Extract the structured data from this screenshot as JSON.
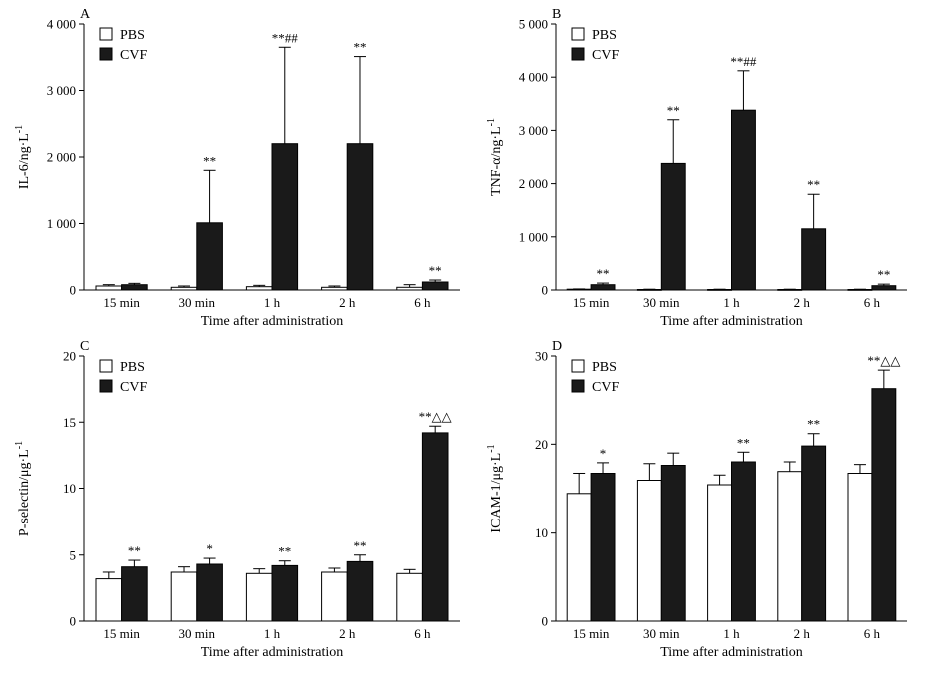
{
  "figure": {
    "legend": {
      "pbs": "PBS",
      "cvf": "CVF"
    },
    "colors": {
      "pbs": "#ffffff",
      "cvf": "#1a1a1a",
      "axis": "#000000"
    }
  },
  "chart_data": [
    {
      "type": "bar",
      "panel": "A",
      "ylabel": "IL-6/ng·L",
      "ylabel_sup": "-1",
      "xlabel": "Time after administration",
      "ylim": [
        0,
        4000
      ],
      "yticks": [
        0,
        1000,
        2000,
        3000,
        4000
      ],
      "ytick_labels": [
        "0",
        "1 000",
        "2 000",
        "3 000",
        "4 000"
      ],
      "categories": [
        "15 min",
        "30 min",
        "1 h",
        "2 h",
        "6 h"
      ],
      "legend_labels": [
        "PBS",
        "CVF"
      ],
      "series": [
        {
          "name": "PBS",
          "values": [
            60,
            40,
            50,
            40,
            40
          ],
          "errors": [
            20,
            20,
            20,
            20,
            40
          ]
        },
        {
          "name": "CVF",
          "values": [
            80,
            1010,
            2200,
            2200,
            120
          ],
          "errors": [
            20,
            790,
            1450,
            1310,
            30
          ]
        }
      ],
      "annotations": [
        "",
        "**",
        "**##",
        "**",
        "**"
      ]
    },
    {
      "type": "bar",
      "panel": "B",
      "ylabel": "TNF-α/ng·L",
      "ylabel_sup": "-1",
      "xlabel": "Time after administration",
      "ylim": [
        0,
        5000
      ],
      "yticks": [
        0,
        1000,
        2000,
        3000,
        4000,
        5000
      ],
      "ytick_labels": [
        "0",
        "1 000",
        "2 000",
        "3 000",
        "4 000",
        "5 000"
      ],
      "categories": [
        "15 min",
        "30 min",
        "1 h",
        "2 h",
        "6 h"
      ],
      "legend_labels": [
        "PBS",
        "CVF"
      ],
      "series": [
        {
          "name": "PBS",
          "values": [
            15,
            10,
            10,
            10,
            10
          ],
          "errors": [
            5,
            5,
            5,
            5,
            5
          ]
        },
        {
          "name": "CVF",
          "values": [
            100,
            2380,
            3380,
            1150,
            80
          ],
          "errors": [
            30,
            820,
            740,
            650,
            30
          ]
        }
      ],
      "annotations": [
        "**",
        "**",
        "**##",
        "**",
        "**"
      ]
    },
    {
      "type": "bar",
      "panel": "C",
      "ylabel": "P-selectin/μg·L",
      "ylabel_sup": "-1",
      "xlabel": "Time after administration",
      "ylim": [
        0,
        20
      ],
      "yticks": [
        0,
        5,
        10,
        15,
        20
      ],
      "ytick_labels": [
        "0",
        "5",
        "10",
        "15",
        "20"
      ],
      "categories": [
        "15 min",
        "30 min",
        "1 h",
        "2 h",
        "6 h"
      ],
      "legend_labels": [
        "PBS",
        "CVF"
      ],
      "series": [
        {
          "name": "PBS",
          "values": [
            3.2,
            3.7,
            3.6,
            3.7,
            3.6
          ],
          "errors": [
            0.5,
            0.4,
            0.35,
            0.3,
            0.3
          ]
        },
        {
          "name": "CVF",
          "values": [
            4.1,
            4.3,
            4.2,
            4.5,
            14.2
          ],
          "errors": [
            0.5,
            0.45,
            0.35,
            0.5,
            0.5
          ]
        }
      ],
      "annotations": [
        "**",
        "*",
        "**",
        "**",
        "**△△"
      ]
    },
    {
      "type": "bar",
      "panel": "D",
      "ylabel": "ICAM-1/μg·L",
      "ylabel_sup": "-1",
      "xlabel": "Time after administration",
      "ylim": [
        0,
        30
      ],
      "yticks": [
        0,
        10,
        20,
        30
      ],
      "ytick_labels": [
        "0",
        "10",
        "20",
        "30"
      ],
      "categories": [
        "15 min",
        "30 min",
        "1 h",
        "2 h",
        "6 h"
      ],
      "legend_labels": [
        "PBS",
        "CVF"
      ],
      "series": [
        {
          "name": "PBS",
          "values": [
            14.4,
            15.9,
            15.4,
            16.9,
            16.7
          ],
          "errors": [
            2.3,
            1.9,
            1.1,
            1.1,
            1.0
          ]
        },
        {
          "name": "CVF",
          "values": [
            16.7,
            17.6,
            18.0,
            19.8,
            26.3
          ],
          "errors": [
            1.2,
            1.4,
            1.1,
            1.4,
            2.1
          ]
        }
      ],
      "annotations": [
        "*",
        "",
        "**",
        "**",
        "**△△"
      ]
    }
  ]
}
